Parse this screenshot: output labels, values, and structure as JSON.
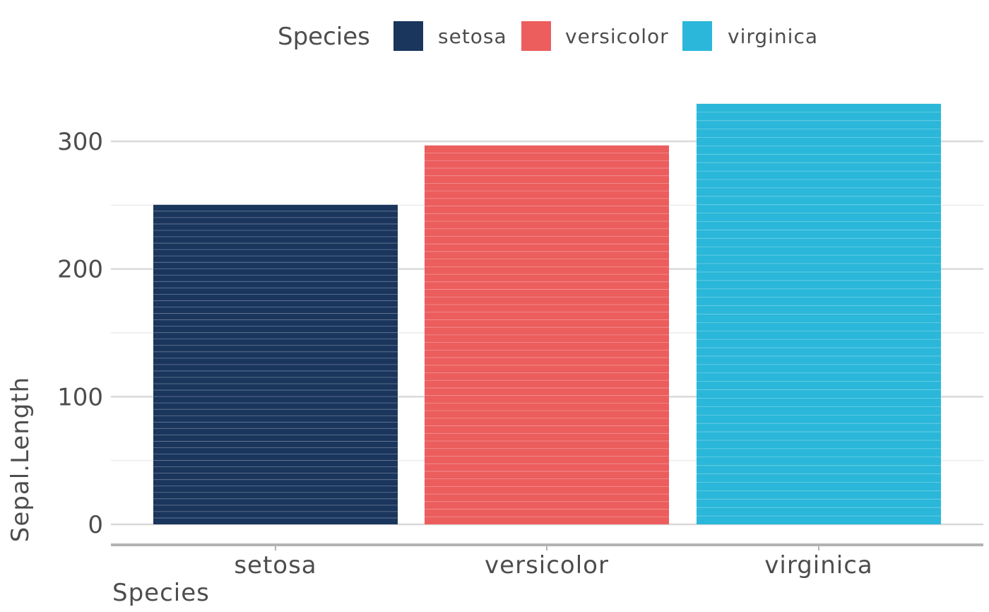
{
  "chart_data": {
    "type": "bar",
    "categories": [
      "setosa",
      "versicolor",
      "virginica"
    ],
    "values": [
      250.3,
      296.8,
      329.4
    ],
    "stacked_segments_per_bar": 50,
    "colors": [
      "#1b365d",
      "#ec5d5d",
      "#2ab7d9"
    ],
    "xlabel": "Species",
    "ylabel": "Sepal.Length",
    "ylim": [
      0,
      330
    ],
    "yticks": [
      0,
      100,
      200,
      300
    ],
    "yminor": [
      50,
      150,
      250
    ],
    "grid": true,
    "legend": {
      "title": "Species",
      "position": "top",
      "entries": [
        "setosa",
        "versicolor",
        "virginica"
      ]
    }
  }
}
